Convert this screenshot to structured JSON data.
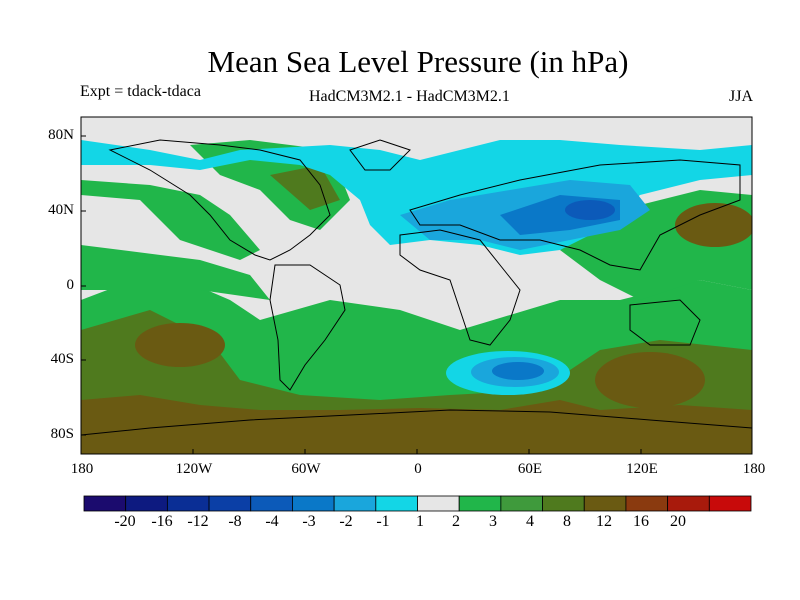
{
  "title": "Mean Sea Level Pressure (in hPa)",
  "experiment_label": "Expt = tdack-tdaca",
  "center_label": "HadCM3M2.1 - HadCM3M2.1",
  "season_label": "JJA",
  "lat_labels": [
    "80N",
    "40N",
    "0",
    "40S",
    "80S"
  ],
  "lon_labels": [
    "180",
    "120W",
    "60W",
    "0",
    "60E",
    "120E",
    "180"
  ],
  "colorbar": {
    "labels": [
      "-20",
      "-16",
      "-12",
      "-8",
      "-4",
      "-3",
      "-2",
      "-1",
      "1",
      "2",
      "3",
      "4",
      "8",
      "12",
      "16",
      "20"
    ],
    "colors": [
      "#1b0b6e",
      "#0d1a80",
      "#0a2e95",
      "#0b3fa6",
      "#0c5ab9",
      "#0a78c8",
      "#1aa6dc",
      "#13d6e6",
      "#e6e6e6",
      "#21b64a",
      "#3f9a3c",
      "#4f7a1e",
      "#6a5a12",
      "#8a3a0f",
      "#a81a0c",
      "#c80a0a"
    ]
  },
  "colors": {
    "land_outline": "#000000",
    "neutral": "#e6e6e6",
    "green1": "#21b64a",
    "green2": "#3f9a3c",
    "olive": "#4f7a1e",
    "brown": "#6a5a12",
    "rust": "#8a3a0f",
    "cyan": "#13d6e6",
    "lightblue": "#1aa6dc",
    "blue": "#0a78c8",
    "darkblue": "#0c5ab9"
  }
}
